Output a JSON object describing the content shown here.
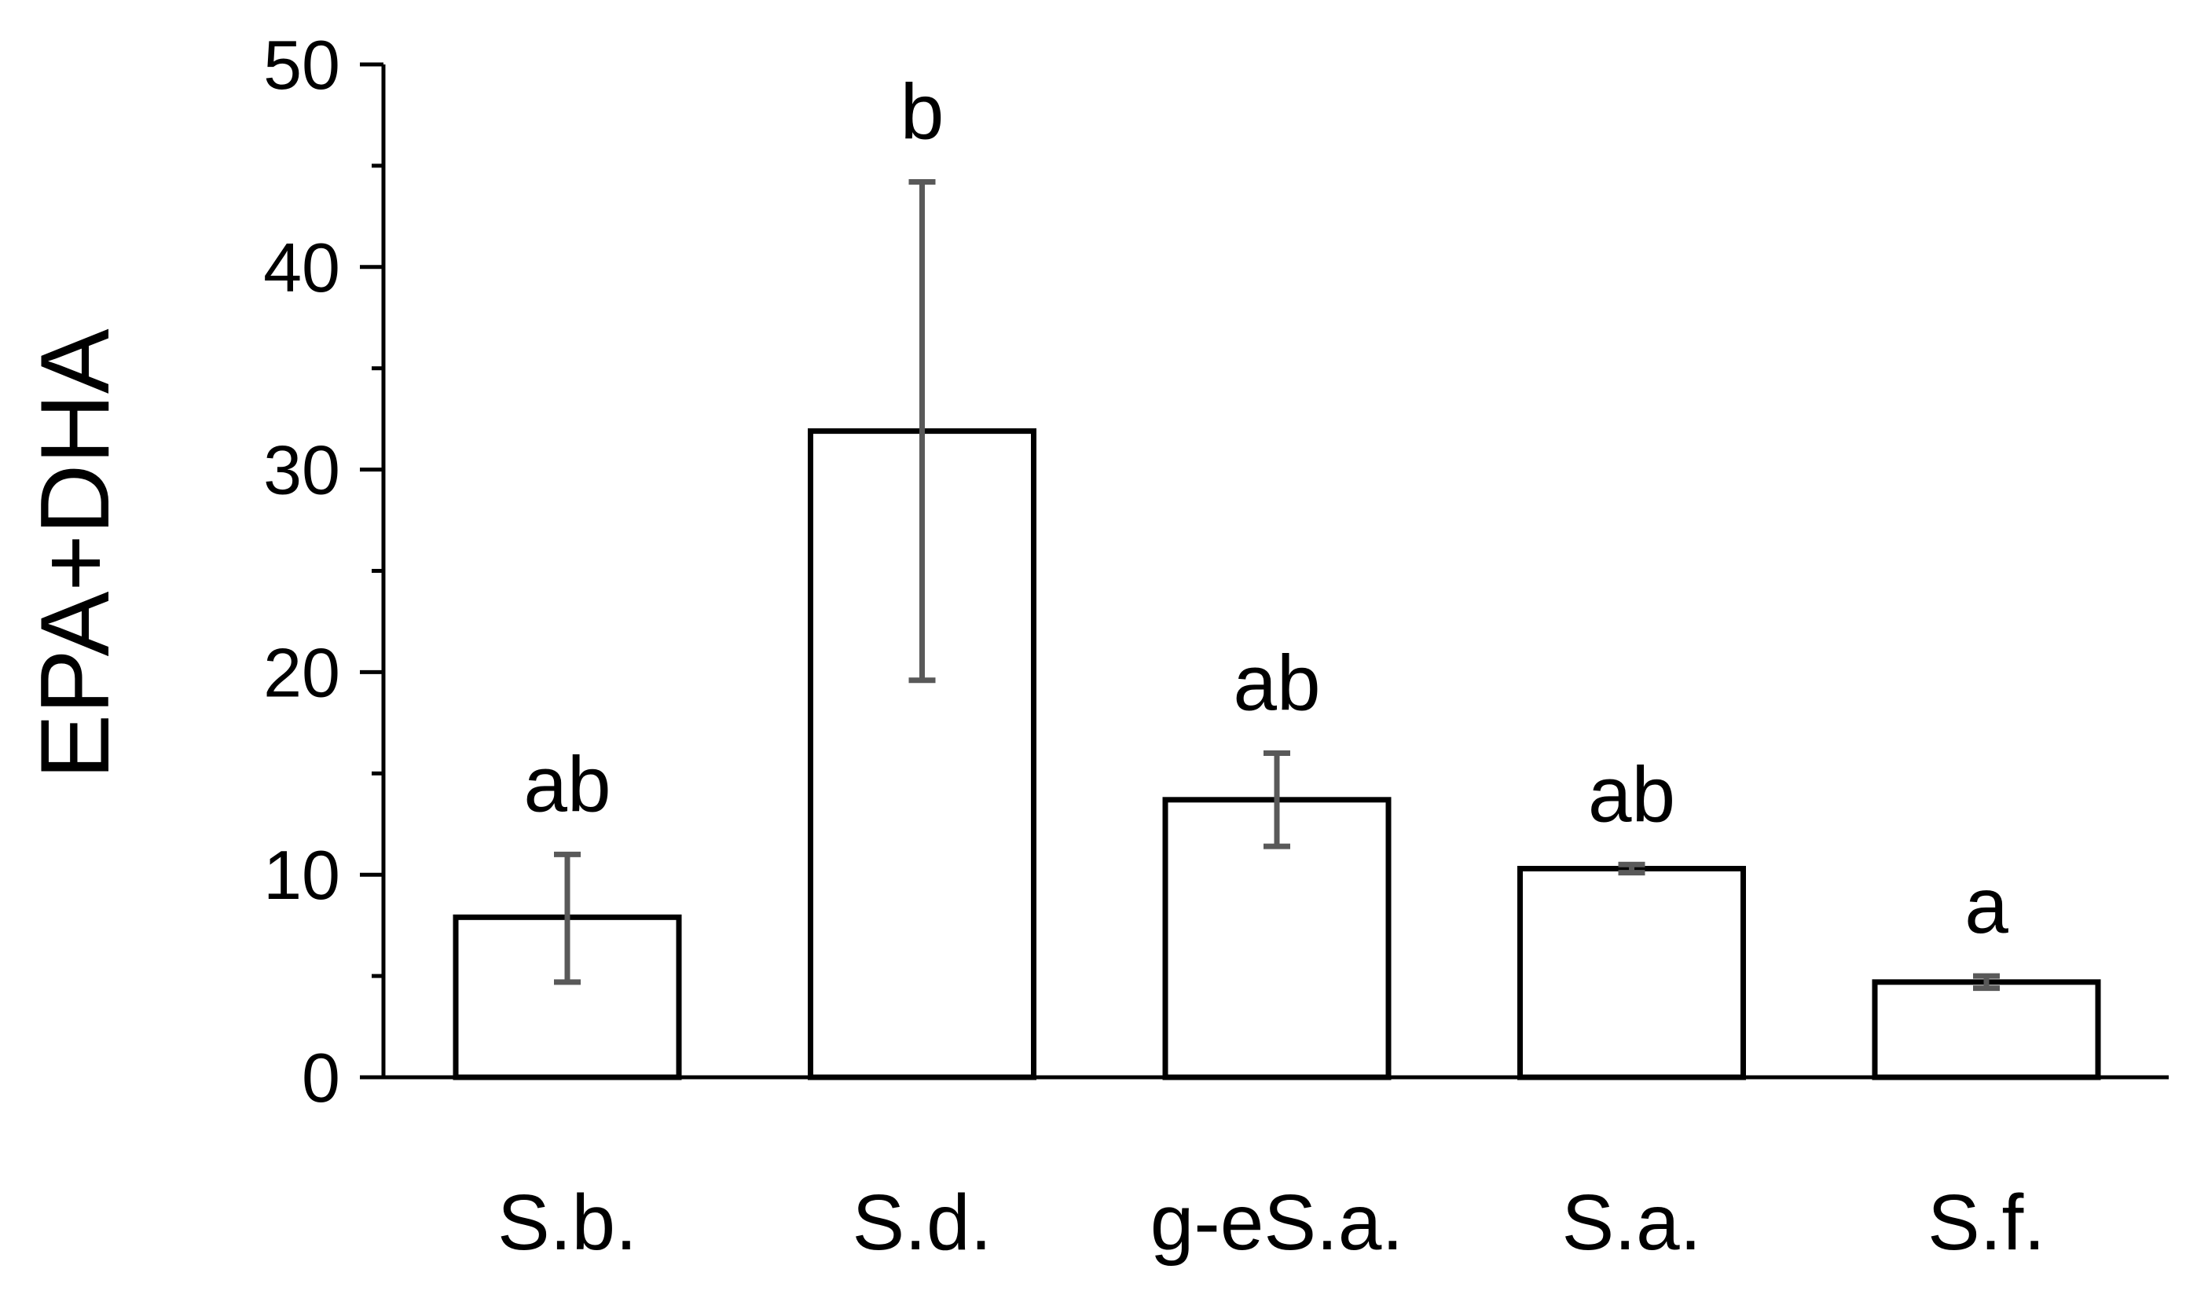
{
  "chart_data": {
    "type": "bar",
    "ylabel": "EPA+DHA",
    "xlabel": "",
    "title": "",
    "ylim": [
      0,
      50
    ],
    "y_major_ticks": [
      0,
      10,
      20,
      30,
      40,
      50
    ],
    "y_minor_ticks": [
      5,
      15,
      25,
      35,
      45
    ],
    "categories": [
      "S.b.",
      "S.d.",
      "g-eS.a.",
      "S.a.",
      "S.f."
    ],
    "values": [
      7.9,
      31.9,
      13.7,
      10.3,
      4.7
    ],
    "error_low": [
      4.7,
      19.6,
      11.4,
      10.1,
      4.4
    ],
    "error_high": [
      11.0,
      44.2,
      16.0,
      10.5,
      5.0
    ],
    "significance_labels": [
      "ab",
      "b",
      "ab",
      "ab",
      "a"
    ],
    "grid": false,
    "legend": "none",
    "colors": {
      "bar_fill": "#ffffff",
      "bar_stroke": "#000000",
      "error_bar": "#595959",
      "axis": "#000000"
    }
  }
}
